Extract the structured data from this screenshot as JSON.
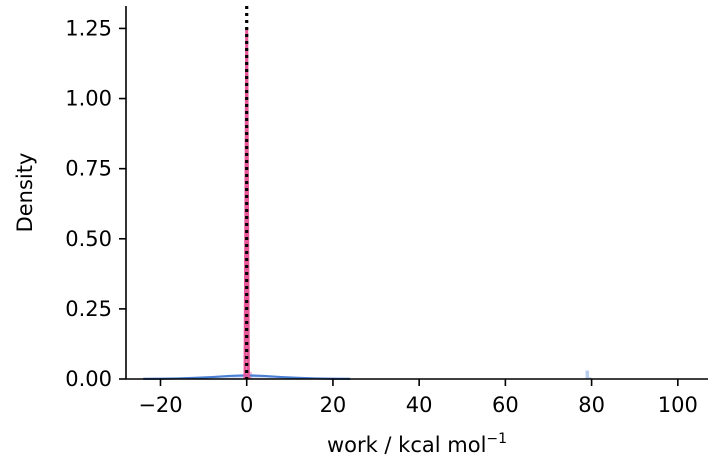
{
  "chart_data": {
    "type": "line",
    "title": "",
    "xlabel": "work / kcal mol",
    "xlabel_superscript": "−1",
    "ylabel": "Density",
    "xlim": [
      -28,
      107
    ],
    "ylim": [
      0,
      1.33
    ],
    "x_ticks": [
      -20,
      0,
      20,
      40,
      60,
      80,
      100
    ],
    "x_tick_labels": [
      "−20",
      "0",
      "20",
      "40",
      "60",
      "80",
      "100"
    ],
    "y_ticks": [
      0,
      0.25,
      0.5,
      0.75,
      1.0,
      1.25
    ],
    "y_tick_labels": [
      "0.00",
      "0.25",
      "0.50",
      "0.75",
      "1.00",
      "1.25"
    ],
    "grid": false,
    "legend": "none",
    "series": [
      {
        "color": "#4a7fd4",
        "kind": "kde",
        "x": [
          -24,
          -20,
          -16,
          -12,
          -8,
          -4,
          0,
          4,
          8,
          12,
          16,
          20,
          24
        ],
        "y": [
          0.0005,
          0.001,
          0.002,
          0.004,
          0.007,
          0.011,
          0.013,
          0.011,
          0.007,
          0.004,
          0.002,
          0.001,
          0.0005
        ]
      },
      {
        "color": "#e8579a",
        "kind": "kde",
        "x": [
          -0.4,
          -0.2,
          0,
          0.2,
          0.4
        ],
        "y": [
          0,
          0.6,
          1.25,
          0.6,
          0
        ]
      }
    ],
    "histogram_bars": [
      {
        "x0": -0.6,
        "x1": 0.4,
        "height": 0.012,
        "color": "#f6b8d4"
      },
      {
        "x0": 0.4,
        "x1": 1.2,
        "height": 0.025,
        "color": "#f6b8d4"
      },
      {
        "x0": 78.6,
        "x1": 79.4,
        "height": 0.03,
        "color": "#b9cdef"
      },
      {
        "x0": 79.4,
        "x1": 80.0,
        "height": 0.006,
        "color": "#b9cdef"
      }
    ],
    "vline": {
      "x": 0,
      "style": "dotted",
      "color": "#000000"
    }
  }
}
